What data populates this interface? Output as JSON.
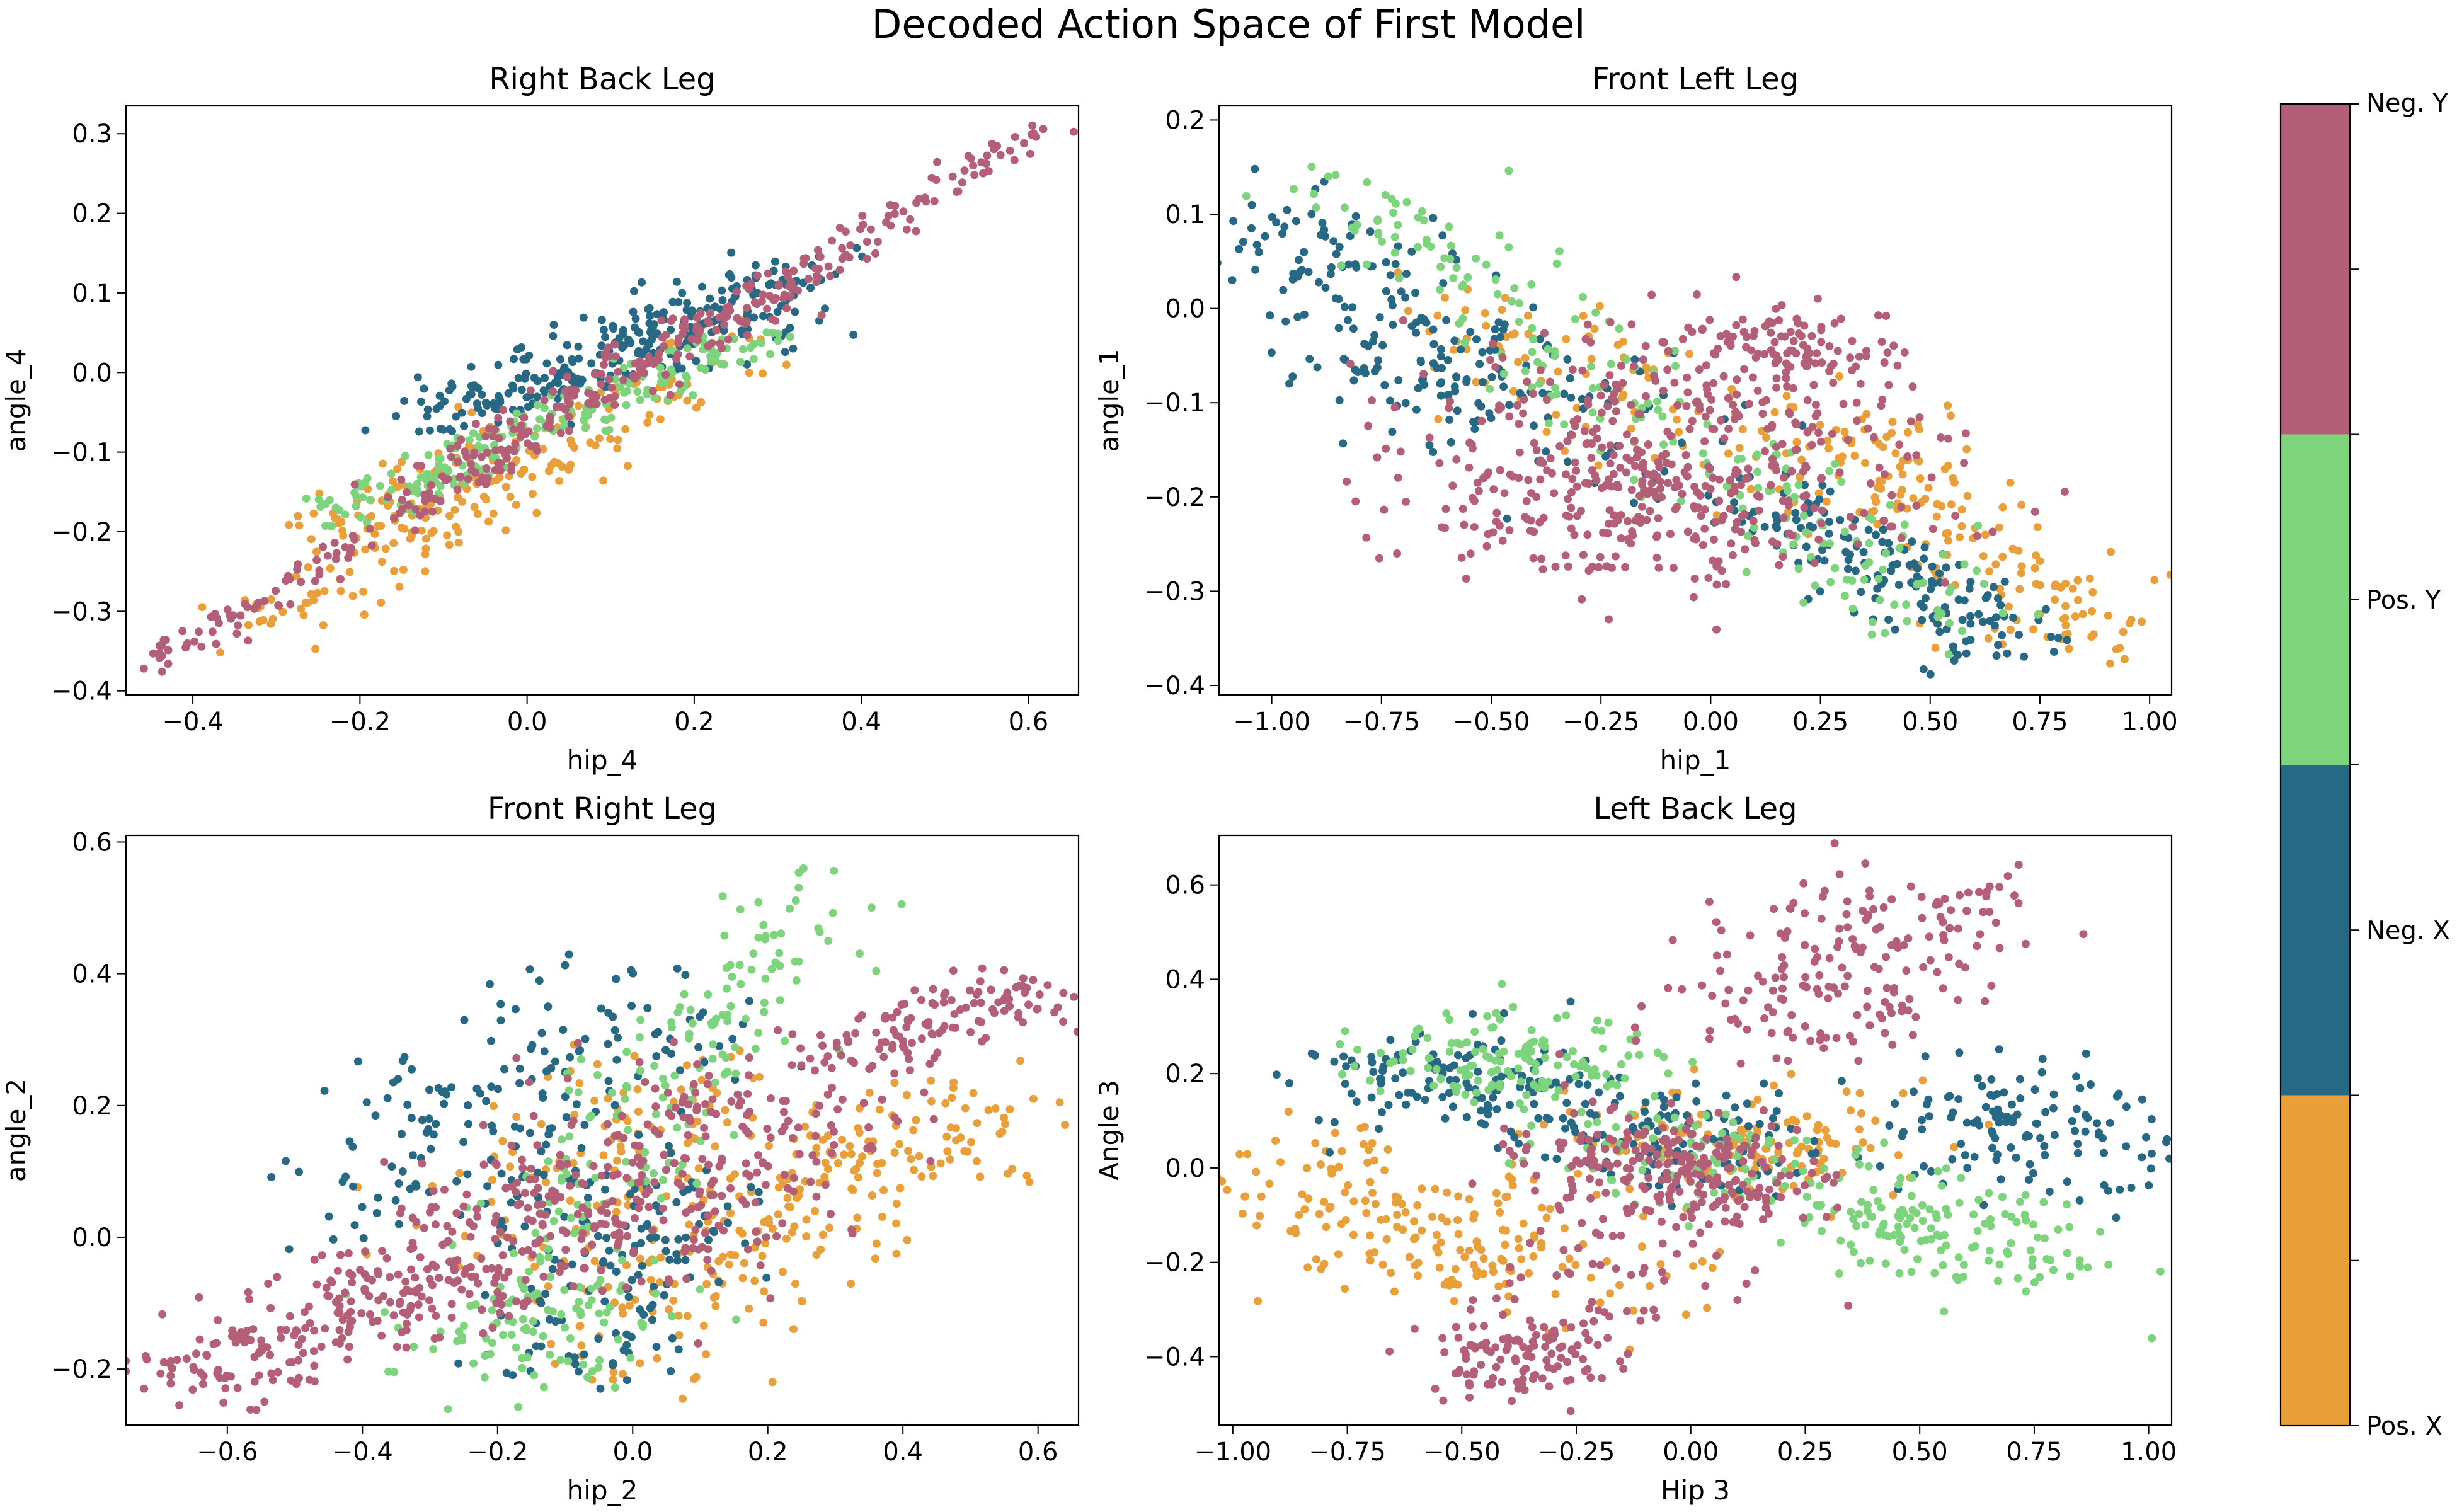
{
  "figure": {
    "title": "Decoded Action Space of First Model"
  },
  "colors": {
    "pos_x": "#E9A03A",
    "neg_x": "#276985",
    "pos_y": "#7DD47D",
    "neg_y": "#B45F78"
  },
  "chart_data": [
    {
      "type": "scatter",
      "title": "Right Back Leg",
      "xlabel": "hip_4",
      "ylabel": "angle_4",
      "xlim": [
        -0.48,
        0.66
      ],
      "ylim": [
        -0.405,
        0.335
      ],
      "xticks": [
        -0.4,
        -0.2,
        0.0,
        0.2,
        0.4,
        0.6
      ],
      "xtick_labels": [
        "−0.4",
        "−0.2",
        "0.0",
        "0.2",
        "0.4",
        "0.6"
      ],
      "yticks": [
        -0.4,
        -0.3,
        -0.2,
        -0.1,
        0.0,
        0.1,
        0.2,
        0.3
      ],
      "ytick_labels": [
        "−0.4",
        "−0.3",
        "−0.2",
        "−0.1",
        "0.0",
        "0.1",
        "0.2",
        "0.3"
      ],
      "series": [
        {
          "name": "Pos. X",
          "color": "#E9A03A",
          "clusters": [
            {
              "n": 160,
              "x0": -0.33,
              "x1": 0.3,
              "y0": -0.33,
              "y1": 0.07,
              "s": 0.016
            },
            {
              "n": 80,
              "x0": -0.25,
              "x1": 0.0,
              "y0": -0.22,
              "y1": -0.07,
              "s": 0.018
            }
          ]
        },
        {
          "name": "Neg. X",
          "color": "#276985",
          "clusters": [
            {
              "n": 230,
              "x0": -0.1,
              "x1": 0.33,
              "y0": -0.06,
              "y1": 0.13,
              "s": 0.018
            },
            {
              "n": 50,
              "x0": 0.1,
              "x1": 0.3,
              "y0": 0.0,
              "y1": 0.1,
              "s": 0.02
            }
          ]
        },
        {
          "name": "Pos. Y",
          "color": "#7DD47D",
          "clusters": [
            {
              "n": 200,
              "x0": -0.22,
              "x1": 0.28,
              "y0": -0.18,
              "y1": 0.05,
              "s": 0.012
            }
          ]
        },
        {
          "name": "Neg. Y",
          "color": "#B45F78",
          "clusters": [
            {
              "n": 260,
              "x0": -0.45,
              "x1": 0.62,
              "y0": -0.37,
              "y1": 0.31,
              "s": 0.008
            },
            {
              "n": 120,
              "x0": -0.15,
              "x1": 0.35,
              "y0": -0.15,
              "y1": 0.13,
              "s": 0.014
            }
          ]
        }
      ]
    },
    {
      "type": "scatter",
      "title": "Front Left Leg",
      "xlabel": "hip_1",
      "ylabel": "angle_1",
      "xlim": [
        -1.12,
        1.05
      ],
      "ylim": [
        -0.41,
        0.215
      ],
      "xticks": [
        -1.0,
        -0.75,
        -0.5,
        -0.25,
        0.0,
        0.25,
        0.5,
        0.75,
        1.0
      ],
      "xtick_labels": [
        "−1.00",
        "−0.75",
        "−0.50",
        "−0.25",
        "0.00",
        "0.25",
        "0.50",
        "0.75",
        "1.00"
      ],
      "yticks": [
        -0.4,
        -0.3,
        -0.2,
        -0.1,
        0.0,
        0.1,
        0.2
      ],
      "ytick_labels": [
        "−0.4",
        "−0.3",
        "−0.2",
        "−0.1",
        "0.0",
        "0.1",
        "0.2"
      ],
      "series": [
        {
          "name": "Pos. X",
          "color": "#E9A03A",
          "clusters": [
            {
              "n": 170,
              "x0": 0.25,
              "x1": 0.9,
              "y0": -0.12,
              "y1": -0.36,
              "s": 0.022
            },
            {
              "n": 90,
              "x0": -0.6,
              "x1": 0.1,
              "y0": 0.0,
              "y1": -0.17,
              "s": 0.03
            }
          ]
        },
        {
          "name": "Neg. X",
          "color": "#276985",
          "clusters": [
            {
              "n": 140,
              "x0": -0.98,
              "x1": -0.55,
              "y0": 0.1,
              "y1": -0.08,
              "s": 0.025
            },
            {
              "n": 160,
              "x0": 0.1,
              "x1": 0.7,
              "y0": -0.2,
              "y1": -0.36,
              "s": 0.018
            },
            {
              "n": 90,
              "x0": -0.7,
              "x1": -0.2,
              "y0": -0.05,
              "y1": -0.14,
              "s": 0.035
            }
          ]
        },
        {
          "name": "Pos. Y",
          "color": "#7DD47D",
          "clusters": [
            {
              "n": 210,
              "x0": -0.9,
              "x1": 0.55,
              "y0": 0.14,
              "y1": -0.34,
              "s": 0.02
            }
          ]
        },
        {
          "name": "Neg. Y",
          "color": "#B45F78",
          "clusters": [
            {
              "n": 330,
              "x0": -0.3,
              "x1": 0.18,
              "y0": -0.1,
              "y1": -0.2,
              "s": 0.05
            },
            {
              "n": 110,
              "x0": 0.05,
              "x1": 0.3,
              "y0": -0.02,
              "y1": -0.06,
              "s": 0.02
            },
            {
              "n": 150,
              "x0": -0.4,
              "x1": -0.1,
              "y0": -0.2,
              "y1": -0.24,
              "s": 0.035
            }
          ]
        }
      ]
    },
    {
      "type": "scatter",
      "title": "Front Right Leg",
      "xlabel": "hip_2",
      "ylabel": "angle_2",
      "xlim": [
        -0.75,
        0.66
      ],
      "ylim": [
        -0.285,
        0.61
      ],
      "xticks": [
        -0.6,
        -0.4,
        -0.2,
        0.0,
        0.2,
        0.4,
        0.6
      ],
      "xtick_labels": [
        "−0.6",
        "−0.4",
        "−0.2",
        "0.0",
        "0.2",
        "0.4",
        "0.6"
      ],
      "yticks": [
        -0.2,
        0.0,
        0.2,
        0.4,
        0.6
      ],
      "ytick_labels": [
        "−0.2",
        "0.0",
        "0.2",
        "0.4",
        "0.6"
      ],
      "series": [
        {
          "name": "Pos. X",
          "color": "#E9A03A",
          "clusters": [
            {
              "n": 150,
              "x0": 0.0,
              "x1": 0.45,
              "y0": -0.17,
              "y1": 0.2,
              "s": 0.04
            },
            {
              "n": 130,
              "x0": -0.15,
              "x1": 0.15,
              "y0": -0.05,
              "y1": 0.25,
              "s": 0.05
            },
            {
              "n": 60,
              "x0": 0.3,
              "x1": 0.5,
              "y0": 0.05,
              "y1": 0.22,
              "s": 0.04
            }
          ]
        },
        {
          "name": "Neg. X",
          "color": "#276985",
          "clusters": [
            {
              "n": 170,
              "x0": -0.35,
              "x1": 0.05,
              "y0": 0.05,
              "y1": 0.38,
              "s": 0.05
            },
            {
              "n": 130,
              "x0": -0.1,
              "x1": 0.05,
              "y0": -0.2,
              "y1": 0.1,
              "s": 0.035
            }
          ]
        },
        {
          "name": "Pos. Y",
          "color": "#7DD47D",
          "clusters": [
            {
              "n": 200,
              "x0": -0.2,
              "x1": 0.25,
              "y0": -0.15,
              "y1": 0.53,
              "s": 0.03
            },
            {
              "n": 60,
              "x0": -0.25,
              "x1": -0.05,
              "y0": -0.22,
              "y1": -0.08,
              "s": 0.035
            }
          ]
        },
        {
          "name": "Neg. Y",
          "color": "#B45F78",
          "clusters": [
            {
              "n": 200,
              "x0": -0.68,
              "x1": -0.25,
              "y0": -0.22,
              "y1": -0.05,
              "s": 0.03
            },
            {
              "n": 280,
              "x0": -0.1,
              "x1": 0.2,
              "y0": 0.0,
              "y1": 0.2,
              "s": 0.06
            },
            {
              "n": 120,
              "x0": 0.3,
              "x1": 0.6,
              "y0": 0.27,
              "y1": 0.38,
              "s": 0.025
            },
            {
              "n": 90,
              "x0": -0.3,
              "x1": -0.1,
              "y0": -0.08,
              "y1": 0.05,
              "s": 0.04
            }
          ]
        }
      ]
    },
    {
      "type": "scatter",
      "title": "Left Back Leg",
      "xlabel": "Hip 3",
      "ylabel": "Angle 3",
      "xlim": [
        -1.03,
        1.05
      ],
      "ylim": [
        -0.545,
        0.705
      ],
      "xticks": [
        -1.0,
        -0.75,
        -0.5,
        -0.25,
        0.0,
        0.25,
        0.5,
        0.75,
        1.0
      ],
      "xtick_labels": [
        "−1.00",
        "−0.75",
        "−0.50",
        "−0.25",
        "0.00",
        "0.25",
        "0.50",
        "0.75",
        "1.00"
      ],
      "yticks": [
        -0.4,
        -0.2,
        0.0,
        0.2,
        0.4,
        0.6
      ],
      "ytick_labels": [
        "−0.4",
        "−0.2",
        "0.0",
        "0.2",
        "0.4",
        "0.6"
      ],
      "series": [
        {
          "name": "Pos. X",
          "color": "#E9A03A",
          "clusters": [
            {
              "n": 140,
              "x0": -0.9,
              "x1": -0.5,
              "y0": 0.05,
              "y1": -0.22,
              "s": 0.06
            },
            {
              "n": 130,
              "x0": -0.05,
              "x1": 0.35,
              "y0": 0.06,
              "y1": 0.03,
              "s": 0.06
            },
            {
              "n": 60,
              "x0": -0.5,
              "x1": -0.2,
              "y0": -0.1,
              "y1": -0.25,
              "s": 0.07
            }
          ]
        },
        {
          "name": "Neg. X",
          "color": "#276985",
          "clusters": [
            {
              "n": 130,
              "x0": -0.7,
              "x1": -0.3,
              "y0": 0.2,
              "y1": 0.16,
              "s": 0.05
            },
            {
              "n": 130,
              "x0": 0.6,
              "x1": 0.92,
              "y0": 0.15,
              "y1": -0.02,
              "s": 0.06
            },
            {
              "n": 110,
              "x0": -0.2,
              "x1": 0.15,
              "y0": 0.1,
              "y1": 0.0,
              "s": 0.06
            }
          ]
        },
        {
          "name": "Pos. Y",
          "color": "#7DD47D",
          "clusters": [
            {
              "n": 140,
              "x0": -0.6,
              "x1": -0.2,
              "y0": 0.25,
              "y1": 0.22,
              "s": 0.05
            },
            {
              "n": 140,
              "x0": 0.35,
              "x1": 0.75,
              "y0": -0.08,
              "y1": -0.2,
              "s": 0.05
            },
            {
              "n": 90,
              "x0": -0.15,
              "x1": 0.3,
              "y0": 0.05,
              "y1": -0.02,
              "s": 0.05
            }
          ]
        },
        {
          "name": "Neg. Y",
          "color": "#B45F78",
          "clusters": [
            {
              "n": 190,
              "x0": 0.15,
              "x1": 0.55,
              "y0": 0.3,
              "y1": 0.58,
              "s": 0.06
            },
            {
              "n": 220,
              "x0": -0.2,
              "x1": 0.15,
              "y0": 0.05,
              "y1": -0.05,
              "s": 0.05
            },
            {
              "n": 110,
              "x0": -0.45,
              "x1": -0.25,
              "y0": -0.45,
              "y1": -0.35,
              "s": 0.04
            },
            {
              "n": 60,
              "x0": -0.25,
              "x1": -0.1,
              "y0": -0.3,
              "y1": -0.1,
              "s": 0.06
            }
          ]
        }
      ]
    }
  ],
  "colorbar": {
    "labels": [
      "Neg. Y",
      "Pos. Y",
      "Neg. X",
      "Pos. X"
    ],
    "colors_top_to_bottom": [
      "#B45F78",
      "#7DD47D",
      "#276985",
      "#E9A03A"
    ]
  }
}
